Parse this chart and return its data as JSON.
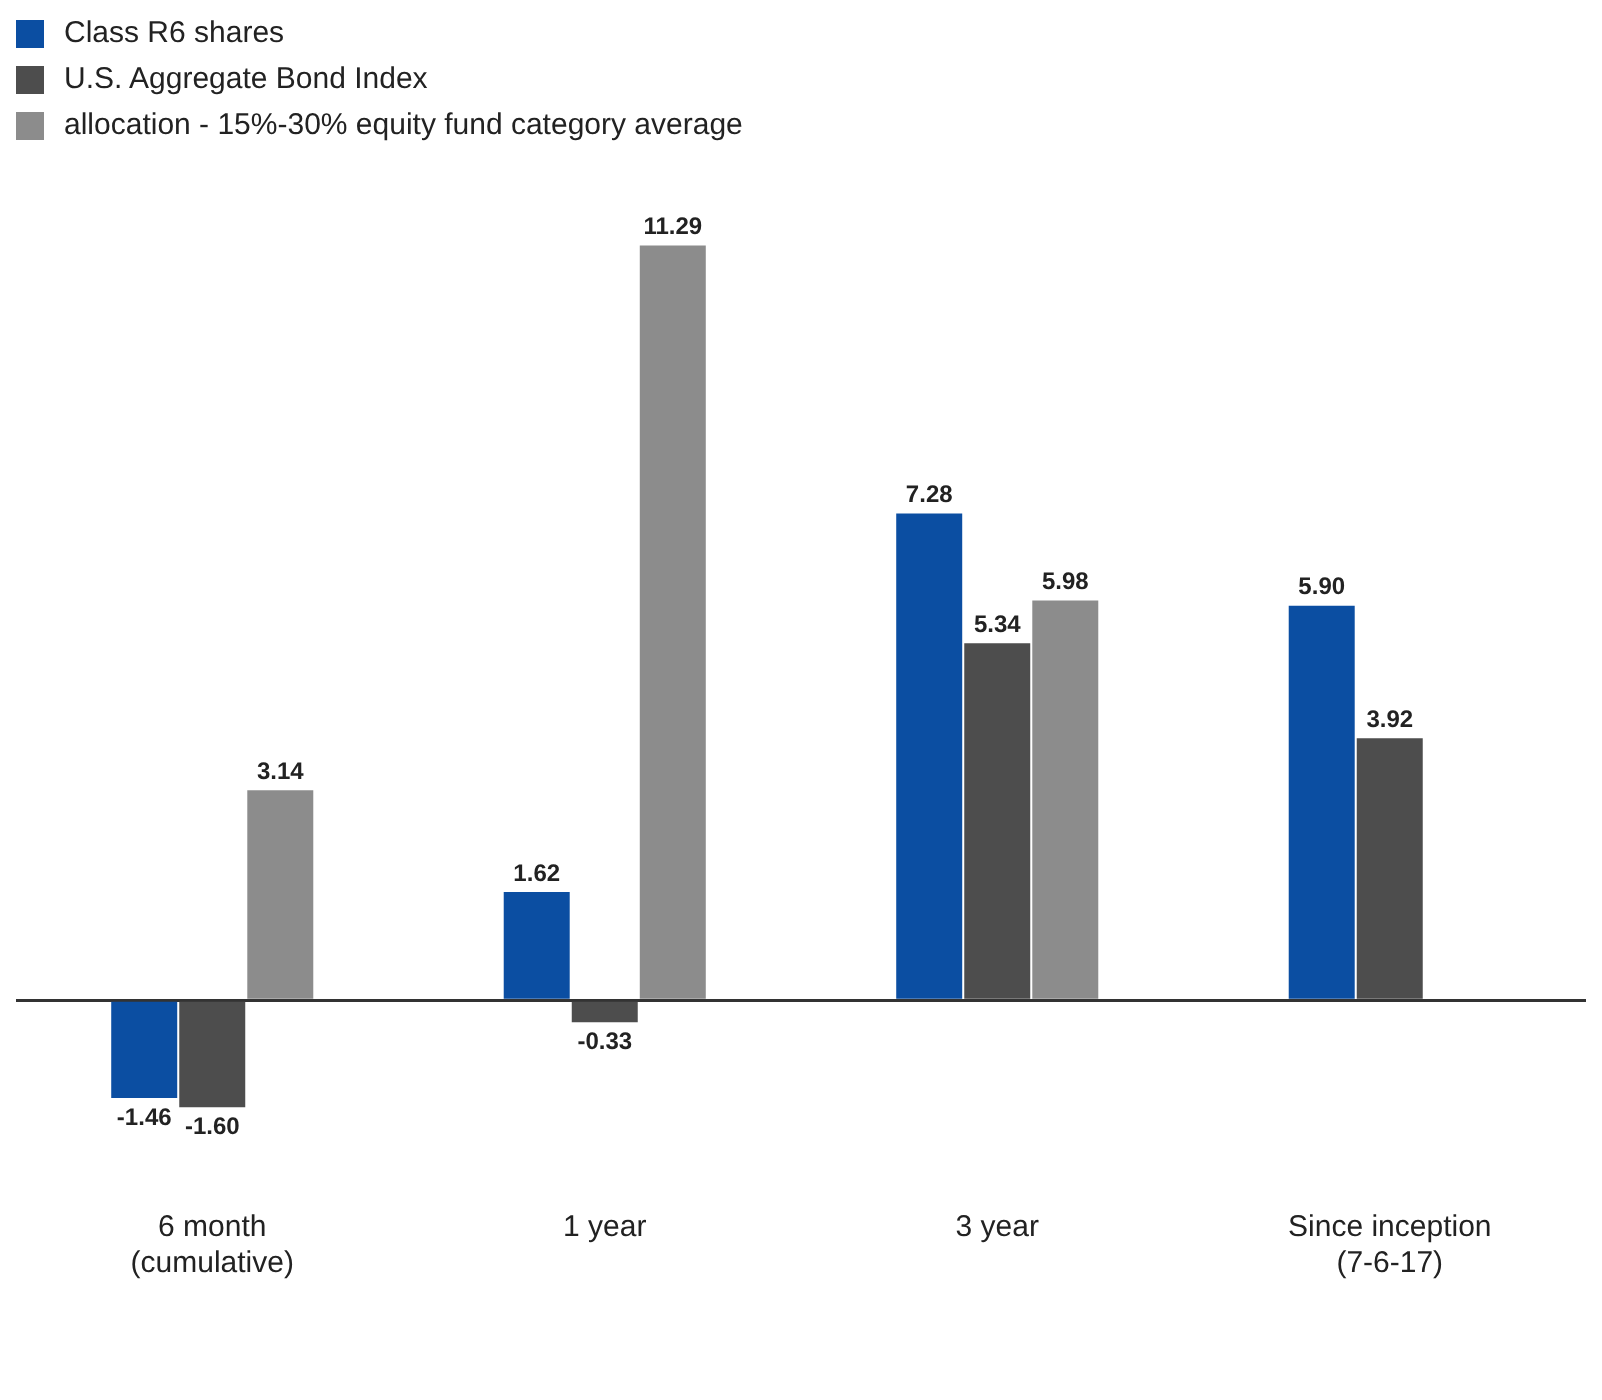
{
  "chart_data": {
    "type": "bar",
    "categories": [
      "6 month\n(cumulative)",
      "1 year",
      "3 year",
      "Since inception\n(7-6-17)"
    ],
    "series": [
      {
        "name": "Class R6 shares",
        "color": "#0b4ea2",
        "values": [
          -1.46,
          1.62,
          7.28,
          5.9
        ],
        "value_labels": [
          "-1.46",
          "1.62",
          "7.28",
          "5.90"
        ]
      },
      {
        "name": "U.S. Aggregate Bond Index",
        "color": "#4d4d4d",
        "values": [
          -1.6,
          -0.33,
          5.34,
          3.92
        ],
        "value_labels": [
          "-1.60",
          "-0.33",
          "5.34",
          "3.92"
        ]
      },
      {
        "name": "allocation - 15%-30% equity fund category average",
        "color": "#8c8c8c",
        "values": [
          3.14,
          11.29,
          5.98,
          null
        ],
        "value_labels": [
          "3.14",
          "11.29",
          "5.98",
          null
        ]
      }
    ],
    "legend": "top left",
    "grid": false
  }
}
